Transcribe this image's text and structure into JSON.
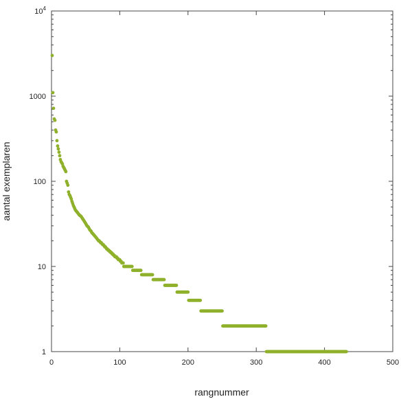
{
  "chart_data": {
    "type": "scatter",
    "xlabel": "rangnummer",
    "ylabel": "aantal exemplaren",
    "xlim": [
      0,
      500
    ],
    "ylim": [
      1,
      10000
    ],
    "y_scale": "log",
    "grid": false,
    "legend": "none",
    "marker_color": "#8fb02a",
    "x_ticks": [
      {
        "value": 0,
        "label": "0"
      },
      {
        "value": 100,
        "label": "100"
      },
      {
        "value": 200,
        "label": "200"
      },
      {
        "value": 300,
        "label": "300"
      },
      {
        "value": 400,
        "label": "400"
      },
      {
        "value": 500,
        "label": "500"
      }
    ],
    "y_ticks": [
      {
        "value": 1,
        "label": "1"
      },
      {
        "value": 10,
        "label": "10"
      },
      {
        "value": 100,
        "label": "100"
      },
      {
        "value": 1000,
        "label": "1000"
      },
      {
        "value": 10000,
        "label": "10",
        "sup": "4"
      }
    ],
    "points": [
      [
        1,
        3000
      ],
      [
        2,
        1100
      ],
      [
        3,
        720
      ],
      [
        4,
        540
      ],
      [
        5,
        520
      ],
      [
        6,
        400
      ],
      [
        7,
        380
      ],
      [
        8,
        300
      ],
      [
        9,
        260
      ],
      [
        10,
        240
      ],
      [
        11,
        220
      ],
      [
        12,
        200
      ],
      [
        13,
        180
      ],
      [
        14,
        170
      ],
      [
        15,
        165
      ],
      [
        16,
        160
      ],
      [
        17,
        150
      ],
      [
        18,
        145
      ],
      [
        19,
        140
      ],
      [
        20,
        135
      ],
      [
        21,
        130
      ],
      [
        22,
        100
      ],
      [
        23,
        95
      ],
      [
        24,
        90
      ],
      [
        25,
        75
      ],
      [
        26,
        70
      ],
      [
        27,
        68
      ],
      [
        28,
        65
      ],
      [
        29,
        62
      ],
      [
        30,
        58
      ],
      [
        31,
        55
      ],
      [
        32,
        52
      ],
      [
        33,
        50
      ],
      [
        34,
        48
      ],
      [
        35,
        46
      ],
      [
        36,
        45
      ],
      [
        37,
        44
      ],
      [
        38,
        43
      ],
      [
        39,
        42
      ],
      [
        40,
        41
      ],
      [
        41,
        40
      ],
      [
        42,
        39.5
      ],
      [
        43,
        39
      ],
      [
        44,
        38
      ],
      [
        45,
        37
      ],
      [
        46,
        36
      ],
      [
        47,
        35
      ],
      [
        48,
        34
      ],
      [
        49,
        33
      ],
      [
        50,
        32
      ],
      [
        51,
        31
      ],
      [
        52,
        30
      ],
      [
        53,
        29.5
      ],
      [
        54,
        29
      ],
      [
        55,
        28
      ],
      [
        56,
        27
      ],
      [
        57,
        26.5
      ],
      [
        58,
        26
      ],
      [
        59,
        25
      ],
      [
        60,
        24.5
      ],
      [
        61,
        24
      ],
      [
        62,
        23.5
      ],
      [
        63,
        23
      ],
      [
        64,
        22.5
      ],
      [
        65,
        22
      ],
      [
        66,
        21.5
      ],
      [
        67,
        21
      ],
      [
        68,
        20.5
      ],
      [
        69,
        20
      ],
      [
        70,
        20
      ],
      [
        71,
        19.5
      ],
      [
        72,
        19
      ],
      [
        73,
        19
      ],
      [
        74,
        18.5
      ],
      [
        75,
        18
      ],
      [
        76,
        18
      ],
      [
        77,
        17.5
      ],
      [
        78,
        17
      ],
      [
        79,
        17
      ],
      [
        80,
        16.5
      ],
      [
        81,
        16
      ],
      [
        82,
        16
      ],
      [
        83,
        15.5
      ],
      [
        84,
        15.5
      ],
      [
        85,
        15
      ],
      [
        86,
        15
      ],
      [
        87,
        14.5
      ],
      [
        88,
        14.5
      ],
      [
        89,
        14
      ],
      [
        90,
        14
      ],
      [
        91,
        13.5
      ],
      [
        92,
        13.5
      ],
      [
        93,
        13
      ],
      [
        94,
        13
      ],
      [
        95,
        13
      ],
      [
        96,
        12.5
      ],
      [
        97,
        12.5
      ],
      [
        98,
        12
      ],
      [
        99,
        12
      ],
      [
        100,
        12
      ],
      [
        101,
        11.5
      ],
      [
        102,
        11.5
      ],
      [
        103,
        11
      ],
      [
        104,
        11
      ],
      [
        105,
        11
      ]
    ],
    "steps": [
      {
        "y": 10,
        "x_start": 106,
        "x_end": 118
      },
      {
        "y": 9,
        "x_start": 119,
        "x_end": 131
      },
      {
        "y": 8,
        "x_start": 132,
        "x_end": 148
      },
      {
        "y": 7,
        "x_start": 149,
        "x_end": 165
      },
      {
        "y": 6,
        "x_start": 166,
        "x_end": 183
      },
      {
        "y": 5,
        "x_start": 184,
        "x_end": 200
      },
      {
        "y": 4,
        "x_start": 201,
        "x_end": 218
      },
      {
        "y": 3,
        "x_start": 219,
        "x_end": 250
      },
      {
        "y": 2,
        "x_start": 251,
        "x_end": 314
      },
      {
        "y": 1,
        "x_start": 315,
        "x_end": 432
      }
    ]
  }
}
